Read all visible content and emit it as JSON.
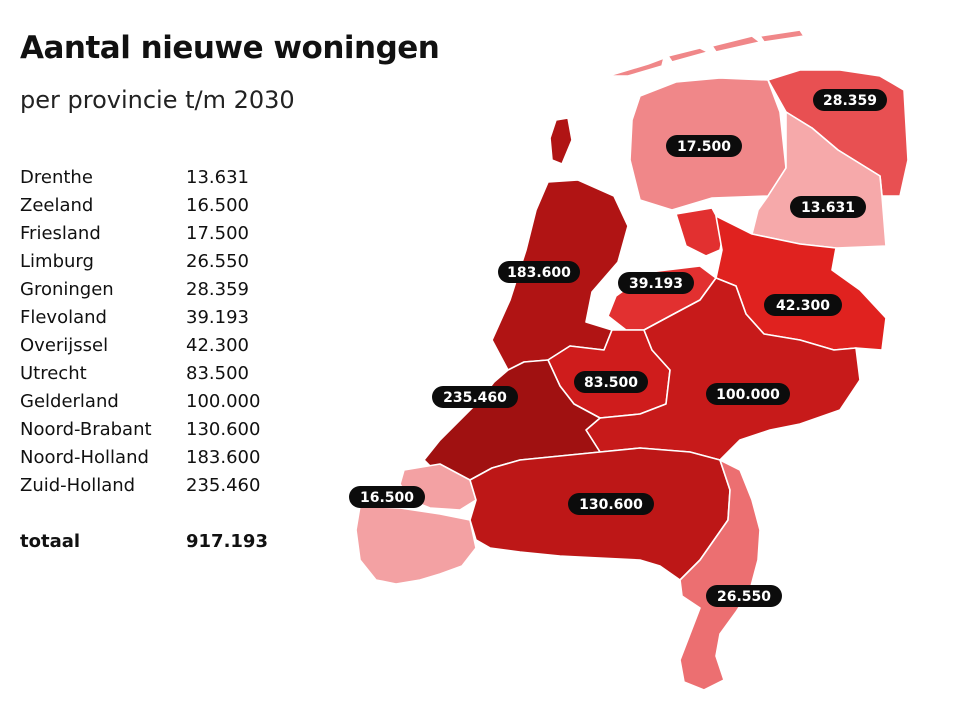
{
  "title": "Aantal nieuwe woningen",
  "subtitle": "per provincie t/m 2030",
  "provinces": [
    {
      "name": "Drenthe",
      "value": "13.631",
      "color": "#f6a9aa"
    },
    {
      "name": "Zeeland",
      "value": "16.500",
      "color": "#f3a1a3"
    },
    {
      "name": "Friesland",
      "value": "17.500",
      "color": "#f08789"
    },
    {
      "name": "Limburg",
      "value": "26.550",
      "color": "#ec6f71"
    },
    {
      "name": "Groningen",
      "value": "28.359",
      "color": "#e85052"
    },
    {
      "name": "Flevoland",
      "value": "39.193",
      "color": "#e23030"
    },
    {
      "name": "Overijssel",
      "value": "42.300",
      "color": "#e0221f"
    },
    {
      "name": "Utrecht",
      "value": "83.500",
      "color": "#cf1c1c"
    },
    {
      "name": "Gelderland",
      "value": "100.000",
      "color": "#c71a1a"
    },
    {
      "name": "Noord-Brabant",
      "value": "130.600",
      "color": "#bd1717"
    },
    {
      "name": "Noord-Holland",
      "value": "183.600",
      "color": "#b01414"
    },
    {
      "name": "Zuid-Holland",
      "value": "235.460",
      "color": "#a01111"
    }
  ],
  "total": {
    "label": "totaal",
    "value": "917.193"
  }
}
